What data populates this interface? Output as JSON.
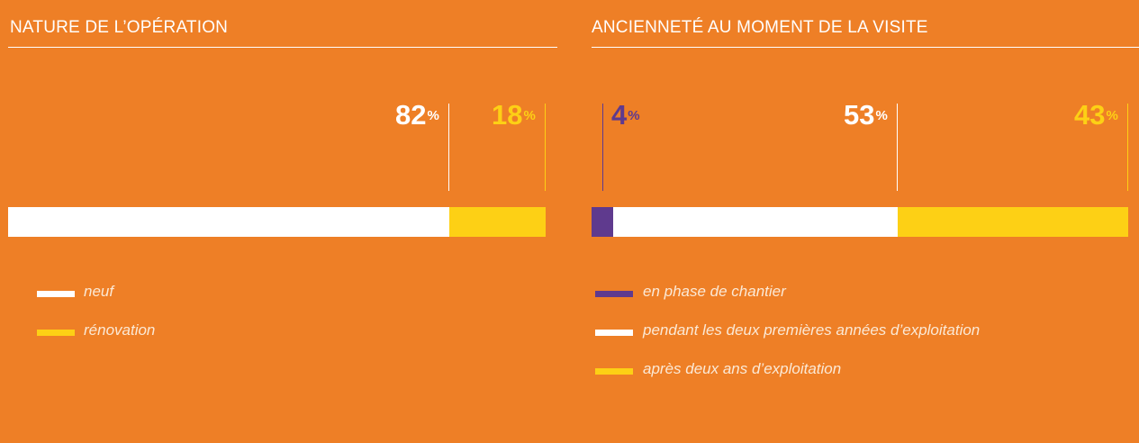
{
  "chart_data": [
    {
      "type": "bar",
      "orientation": "horizontal-stacked",
      "title": "NATURE DE L’OPÉRATION",
      "unit": "%",
      "series": [
        {
          "name": "neuf",
          "value": 82,
          "color": "#FFFFFF",
          "label_color": "#FFFFFF"
        },
        {
          "name": "rénovation",
          "value": 18,
          "color": "#FDD015",
          "label_color": "#FDD015"
        }
      ]
    },
    {
      "type": "bar",
      "orientation": "horizontal-stacked",
      "title": "ANCIENNETÉ AU MOMENT DE LA VISITE",
      "unit": "%",
      "series": [
        {
          "name": "en phase de chantier",
          "value": 4,
          "color": "#5F3A8E",
          "label_color": "#5F3A8E"
        },
        {
          "name": "pendant les deux premières années d’exploitation",
          "value": 53,
          "color": "#FFFFFF",
          "label_color": "#FFFFFF"
        },
        {
          "name": "après deux ans d’exploitation",
          "value": 43,
          "color": "#FDD015",
          "label_color": "#FDD015"
        }
      ]
    }
  ]
}
